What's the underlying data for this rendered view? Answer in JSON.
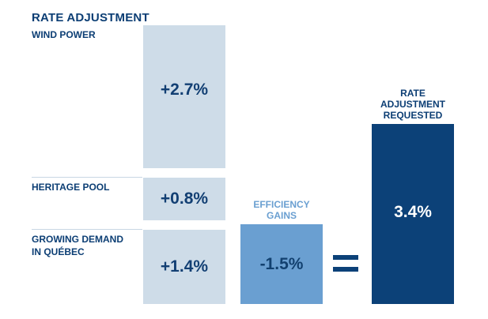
{
  "chart_data": {
    "type": "bar",
    "title": "RATE ADJUSTMENT",
    "unit": "%",
    "stack": [
      {
        "label": "WIND POWER",
        "value": 2.7,
        "display": "+2.7%"
      },
      {
        "label": "HERITAGE POOL",
        "value": 0.8,
        "display": "+0.8%"
      },
      {
        "label": "GROWING DEMAND\nIN QUÉBEC",
        "value": 1.4,
        "display": "+1.4%"
      }
    ],
    "efficiency": {
      "label": "EFFICIENCY\nGAINS",
      "value": -1.5,
      "display": "-1.5%"
    },
    "operator": "=",
    "result": {
      "label": "RATE\nADJUSTMENT\nREQUESTED",
      "value": 3.4,
      "display": "3.4%"
    },
    "colors": {
      "stack": "#cedce8",
      "efficiency": "#6a9fd1",
      "result": "#0c4178",
      "text": "#0c3e74"
    }
  }
}
